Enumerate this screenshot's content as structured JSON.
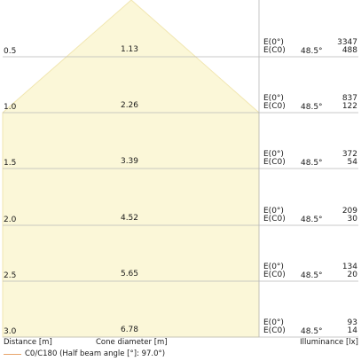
{
  "chart_data": {
    "type": "beam-cone",
    "title": "",
    "xlabel": "Cone diameter [m]",
    "ylabel": "Distance [m]",
    "illuminance_label": "Illuminance [lx]",
    "distances": [
      "0.5",
      "1.0",
      "1.5",
      "2.0",
      "2.5",
      "3.0"
    ],
    "diameters": [
      "1.13",
      "2.26",
      "3.39",
      "4.52",
      "5.65",
      "6.78"
    ],
    "rows": [
      {
        "e0_label": "E(0°)",
        "ec0_label": "E(C0)",
        "angle": "48.5°",
        "e0": "3347",
        "ec0": "488"
      },
      {
        "e0_label": "E(0°)",
        "ec0_label": "E(C0)",
        "angle": "48.5°",
        "e0": "837",
        "ec0": "122"
      },
      {
        "e0_label": "E(0°)",
        "ec0_label": "E(C0)",
        "angle": "48.5°",
        "e0": "372",
        "ec0": "54"
      },
      {
        "e0_label": "E(0°)",
        "ec0_label": "E(C0)",
        "angle": "48.5°",
        "e0": "209",
        "ec0": "30"
      },
      {
        "e0_label": "E(0°)",
        "ec0_label": "E(C0)",
        "angle": "48.5°",
        "e0": "134",
        "ec0": "20"
      },
      {
        "e0_label": "E(0°)",
        "ec0_label": "E(C0)",
        "angle": "48.5°",
        "e0": "93",
        "ec0": "14"
      }
    ],
    "legend": [
      {
        "name": "C0/C180 (Half beam angle [°]: 97.0°)",
        "color": "#e8a46a"
      }
    ],
    "colors": {
      "cone_fill": "#fbf7d8",
      "cone_stroke": "#f1e6b0",
      "grid": "#b8b8b8"
    }
  }
}
